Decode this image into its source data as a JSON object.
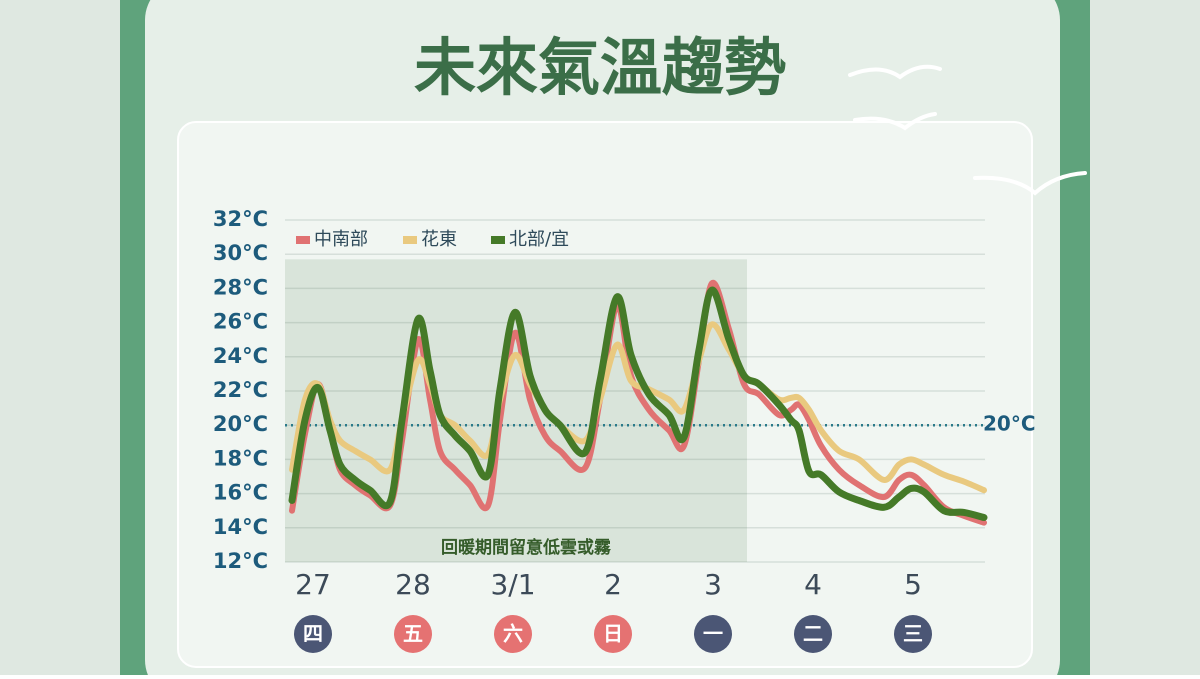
{
  "chart_data": {
    "type": "line",
    "title": "未來氣溫趨勢",
    "x": [
      -0.21,
      -0.08,
      0.05,
      0.17,
      0.27,
      0.42,
      0.57,
      0.77,
      0.89,
      1.05,
      1.17,
      1.27,
      1.42,
      1.57,
      1.75,
      1.87,
      2.02,
      2.17,
      2.32,
      2.47,
      2.72,
      2.87,
      3.04,
      3.18,
      3.36,
      3.56,
      3.71,
      3.86,
      3.99,
      4.16,
      4.31,
      4.46,
      4.66,
      4.78,
      4.86,
      4.96,
      5.08,
      5.26,
      5.46,
      5.71,
      5.86,
      5.98,
      6.11,
      6.31,
      6.51,
      6.71
    ],
    "series": [
      {
        "name": "中南部",
        "color": "#e07272",
        "values": [
          15.0,
          19.5,
          22.4,
          19.8,
          17.4,
          16.5,
          15.9,
          15.3,
          19.1,
          25.0,
          21.5,
          18.5,
          17.4,
          16.5,
          15.3,
          20.3,
          25.4,
          21.5,
          19.4,
          18.5,
          17.5,
          21.5,
          27.0,
          22.9,
          20.9,
          19.7,
          18.8,
          23.8,
          28.3,
          25.6,
          22.4,
          21.8,
          20.6,
          20.9,
          21.2,
          20.3,
          18.8,
          17.4,
          16.5,
          15.8,
          16.8,
          17.1,
          16.5,
          15.2,
          14.7,
          14.3
        ]
      },
      {
        "name": "花東",
        "color": "#e9c97f",
        "values": [
          17.4,
          21.5,
          22.4,
          20.3,
          19.1,
          18.5,
          18.0,
          17.4,
          20.3,
          23.8,
          22.4,
          20.6,
          20.0,
          19.1,
          18.3,
          21.5,
          24.1,
          22.4,
          20.9,
          20.0,
          19.1,
          21.5,
          24.7,
          22.6,
          22.1,
          21.5,
          20.9,
          23.8,
          25.9,
          24.4,
          22.9,
          22.4,
          21.5,
          21.6,
          21.6,
          20.9,
          19.7,
          18.5,
          18.0,
          16.8,
          17.7,
          18.0,
          17.7,
          17.1,
          16.7,
          16.2
        ]
      },
      {
        "name": "北部/宜",
        "color": "#457a28",
        "values": [
          15.6,
          20.3,
          22.2,
          19.7,
          17.7,
          16.8,
          16.2,
          15.5,
          20.3,
          26.2,
          23.2,
          20.6,
          19.4,
          18.5,
          17.1,
          22.1,
          26.6,
          22.9,
          20.9,
          20.0,
          18.4,
          22.6,
          27.5,
          24.1,
          21.8,
          20.6,
          19.3,
          24.4,
          27.9,
          25.0,
          22.9,
          22.4,
          21.2,
          20.3,
          19.7,
          17.3,
          17.1,
          16.1,
          15.6,
          15.2,
          15.8,
          16.3,
          16.1,
          15.0,
          14.9,
          14.6
        ]
      }
    ],
    "xlim": [
      -0.28,
      6.72
    ],
    "ylim": [
      12,
      32
    ],
    "xticks": [
      {
        "value": 0,
        "label": "27"
      },
      {
        "value": 1,
        "label": "28"
      },
      {
        "value": 2,
        "label": "3/1"
      },
      {
        "value": 3,
        "label": "2"
      },
      {
        "value": 4,
        "label": "3"
      },
      {
        "value": 5,
        "label": "4"
      },
      {
        "value": 6,
        "label": "5"
      }
    ],
    "weekdays": [
      {
        "label": "四",
        "color": "#4b5675"
      },
      {
        "label": "五",
        "color": "#e57272"
      },
      {
        "label": "六",
        "color": "#e57272"
      },
      {
        "label": "日",
        "color": "#e57272"
      },
      {
        "label": "一",
        "color": "#4b5675"
      },
      {
        "label": "二",
        "color": "#4b5675"
      },
      {
        "label": "三",
        "color": "#4b5675"
      }
    ],
    "yticks": [
      {
        "value": 12,
        "label": "12°C"
      },
      {
        "value": 14,
        "label": "14°C"
      },
      {
        "value": 16,
        "label": "16°C"
      },
      {
        "value": 18,
        "label": "18°C"
      },
      {
        "value": 20,
        "label": "20°C"
      },
      {
        "value": 22,
        "label": "22°C"
      },
      {
        "value": 24,
        "label": "24°C"
      },
      {
        "value": 26,
        "label": "26°C"
      },
      {
        "value": 28,
        "label": "28°C"
      },
      {
        "value": 30,
        "label": "30°C"
      },
      {
        "value": 32,
        "label": "32°C"
      }
    ],
    "reference_line": {
      "value": 20,
      "label": "20°C"
    },
    "highlight": {
      "text": "回暖期間留意低雲或霧",
      "xrange": [
        -0.28,
        4.34
      ],
      "yrange": [
        12,
        29.7
      ]
    },
    "grid": true,
    "legend": "top-left"
  }
}
